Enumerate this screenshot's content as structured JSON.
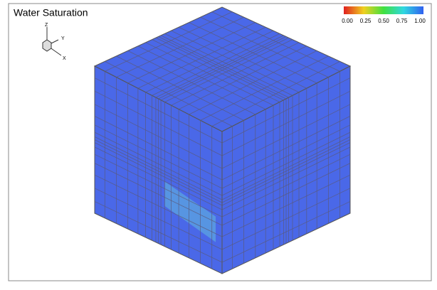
{
  "title": "Water Saturation",
  "colorbar": {
    "labels": [
      "0.00",
      "0.25",
      "0.50",
      "0.75",
      "1.00"
    ]
  },
  "triad": {
    "z": "Z",
    "y": "Y",
    "x": "X"
  }
}
